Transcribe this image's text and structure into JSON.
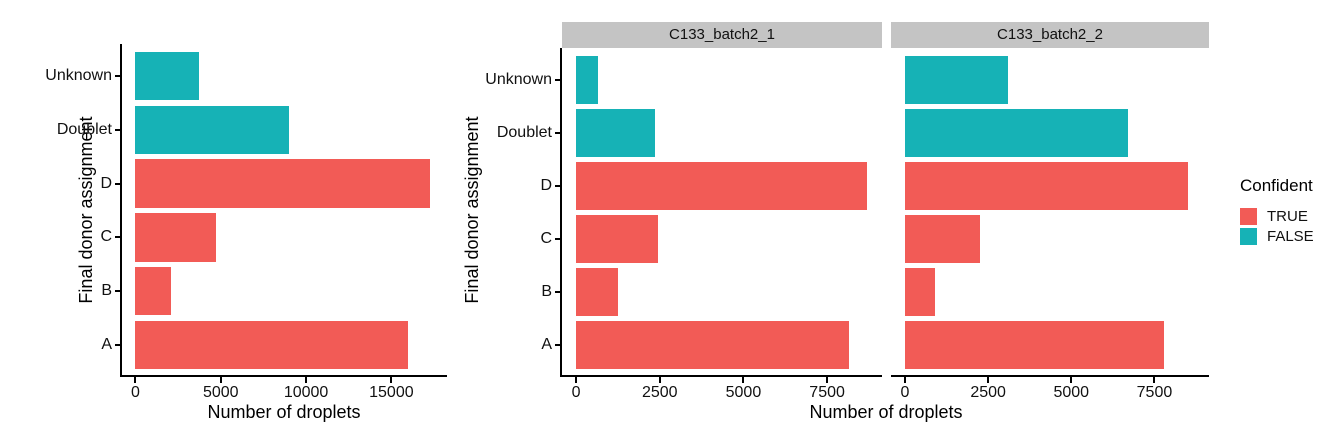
{
  "figure": {
    "background": "#FFFFFF",
    "description": "Faceted horizontal bar charts of droplet donor assignment counts"
  },
  "chart_data": [
    {
      "type": "bar",
      "orientation": "horizontal",
      "facet_label": "",
      "title": "",
      "xlabel": "Number of droplets",
      "ylabel": "Final donor assignment",
      "categories": [
        "A",
        "B",
        "C",
        "D",
        "Doublet",
        "Unknown"
      ],
      "categories_order": "bottom-to-top",
      "values": [
        16000,
        2100,
        4700,
        17250,
        9000,
        3750
      ],
      "confident": [
        true,
        true,
        true,
        true,
        false,
        false
      ],
      "x_ticks": [
        0,
        5000,
        10000,
        15000
      ],
      "xlim": [
        0,
        18300
      ],
      "grid": "off",
      "legend_position": "right"
    },
    {
      "type": "bar",
      "orientation": "horizontal",
      "facet_label": "C133_batch2_1",
      "title": "",
      "xlabel": "Number of droplets",
      "ylabel": "Final donor assignment",
      "categories": [
        "A",
        "B",
        "C",
        "D",
        "Doublet",
        "Unknown"
      ],
      "categories_order": "bottom-to-top",
      "values": [
        8150,
        1250,
        2450,
        8700,
        2350,
        650
      ],
      "confident": [
        true,
        true,
        true,
        true,
        false,
        false
      ],
      "x_ticks": [
        0,
        2500,
        5000,
        7500
      ],
      "xlim": [
        0,
        9150
      ],
      "grid": "off",
      "legend_position": "right"
    },
    {
      "type": "bar",
      "orientation": "horizontal",
      "facet_label": "C133_batch2_2",
      "title": "",
      "xlabel": "Number of droplets",
      "ylabel": "Final donor assignment",
      "categories": [
        "A",
        "B",
        "C",
        "D",
        "Doublet",
        "Unknown"
      ],
      "categories_order": "bottom-to-top",
      "values": [
        7800,
        900,
        2250,
        8500,
        6700,
        3100
      ],
      "confident": [
        true,
        true,
        true,
        true,
        false,
        false
      ],
      "x_ticks": [
        0,
        2500,
        5000,
        7500
      ],
      "xlim": [
        0,
        9150
      ],
      "grid": "off",
      "legend_position": "right"
    }
  ],
  "legend": {
    "title": "Confident",
    "position": "right",
    "items": [
      {
        "label": "TRUE",
        "color": "#F25B56"
      },
      {
        "label": "FALSE",
        "color": "#16B2B6"
      }
    ]
  },
  "colors": {
    "confident_true": "#F25B56",
    "confident_false": "#16B2B6",
    "strip_background": "#C4C4C4",
    "axis_line": "#000000",
    "text": "#000000"
  }
}
